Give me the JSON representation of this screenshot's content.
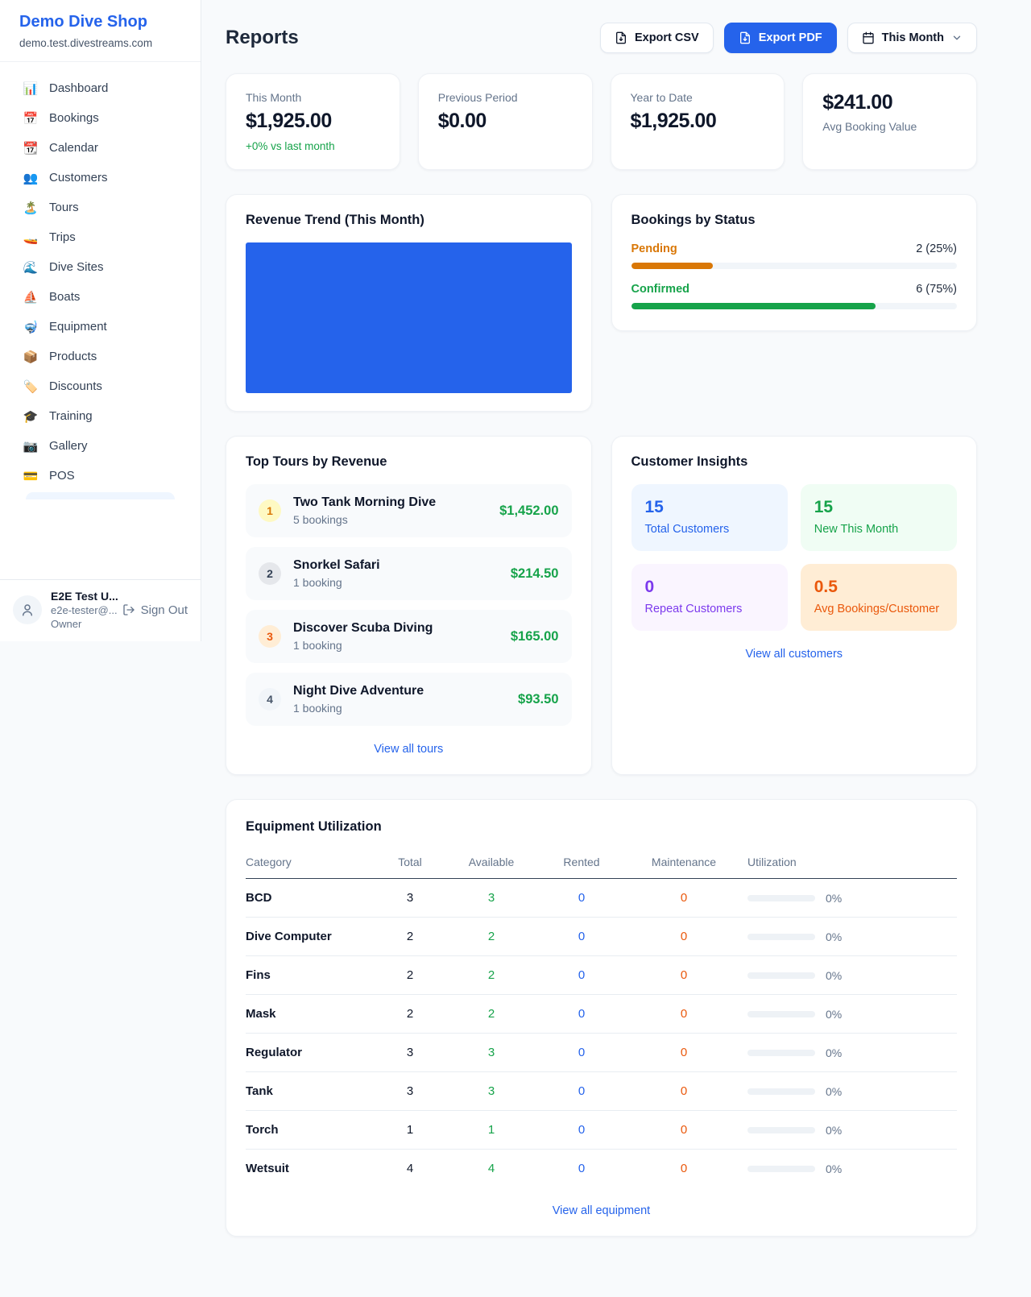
{
  "colors": {
    "accent_blue": "#2563eb",
    "green": "#16a34a",
    "orange_pending": "#d97706",
    "orange_maintenance": "#ea580c",
    "purple": "#7c3aed",
    "page_bg": "#f8fafc"
  },
  "sidebar": {
    "brand": {
      "name": "Demo Dive Shop",
      "domain": "demo.test.divestreams.com"
    },
    "items": [
      {
        "icon": "📊",
        "label": "Dashboard"
      },
      {
        "icon": "📅",
        "label": "Bookings"
      },
      {
        "icon": "📆",
        "label": "Calendar"
      },
      {
        "icon": "👥",
        "label": "Customers"
      },
      {
        "icon": "🏝️",
        "label": "Tours"
      },
      {
        "icon": "🚤",
        "label": "Trips"
      },
      {
        "icon": "🌊",
        "label": "Dive Sites"
      },
      {
        "icon": "⛵",
        "label": "Boats"
      },
      {
        "icon": "🤿",
        "label": "Equipment"
      },
      {
        "icon": "📦",
        "label": "Products"
      },
      {
        "icon": "🏷️",
        "label": "Discounts"
      },
      {
        "icon": "🎓",
        "label": "Training"
      },
      {
        "icon": "📷",
        "label": "Gallery"
      },
      {
        "icon": "💳",
        "label": "POS"
      }
    ],
    "user": {
      "name": "E2E Test U...",
      "email": "e2e-tester@...",
      "role": "Owner",
      "signout_label": "Sign Out"
    }
  },
  "header": {
    "title": "Reports",
    "export_csv_label": "Export CSV",
    "export_pdf_label": "Export PDF",
    "period_label": "This Month"
  },
  "stats": [
    {
      "label": "This Month",
      "value": "$1,925.00",
      "delta": "+0% vs last month"
    },
    {
      "label": "Previous Period",
      "value": "$0.00"
    },
    {
      "label": "Year to Date",
      "value": "$1,925.00"
    },
    {
      "value": "$241.00",
      "label": "Avg Booking Value"
    }
  ],
  "revenue_trend": {
    "title": "Revenue Trend (This Month)"
  },
  "bookings_by_status": {
    "title": "Bookings by Status",
    "rows": [
      {
        "label": "Pending",
        "value": "2 (25%)",
        "pct": 25,
        "color": "#d97706"
      },
      {
        "label": "Confirmed",
        "value": "6 (75%)",
        "pct": 75,
        "color": "#16a34a"
      }
    ]
  },
  "top_tours": {
    "title": "Top Tours by Revenue",
    "rows": [
      {
        "rank": "1",
        "name": "Two Tank Morning Dive",
        "bookings": "5 bookings",
        "amount": "$1,452.00"
      },
      {
        "rank": "2",
        "name": "Snorkel Safari",
        "bookings": "1 booking",
        "amount": "$214.50"
      },
      {
        "rank": "3",
        "name": "Discover Scuba Diving",
        "bookings": "1 booking",
        "amount": "$165.00"
      },
      {
        "rank": "4",
        "name": "Night Dive Adventure",
        "bookings": "1 booking",
        "amount": "$93.50"
      }
    ],
    "view_all": "View all tours"
  },
  "customer_insights": {
    "title": "Customer Insights",
    "tiles": [
      {
        "value": "15",
        "label": "Total Customers"
      },
      {
        "value": "15",
        "label": "New This Month"
      },
      {
        "value": "0",
        "label": "Repeat Customers"
      },
      {
        "value": "0.5",
        "label": "Avg Bookings/Customer"
      }
    ],
    "view_all": "View all customers"
  },
  "equipment": {
    "title": "Equipment Utilization",
    "columns": [
      "Category",
      "Total",
      "Available",
      "Rented",
      "Maintenance",
      "Utilization"
    ],
    "rows": [
      {
        "category": "BCD",
        "total": "3",
        "available": "3",
        "rented": "0",
        "maintenance": "0",
        "pct": 0,
        "utilization": "0%"
      },
      {
        "category": "Dive Computer",
        "total": "2",
        "available": "2",
        "rented": "0",
        "maintenance": "0",
        "pct": 0,
        "utilization": "0%"
      },
      {
        "category": "Fins",
        "total": "2",
        "available": "2",
        "rented": "0",
        "maintenance": "0",
        "pct": 0,
        "utilization": "0%"
      },
      {
        "category": "Mask",
        "total": "2",
        "available": "2",
        "rented": "0",
        "maintenance": "0",
        "pct": 0,
        "utilization": "0%"
      },
      {
        "category": "Regulator",
        "total": "3",
        "available": "3",
        "rented": "0",
        "maintenance": "0",
        "pct": 0,
        "utilization": "0%"
      },
      {
        "category": "Tank",
        "total": "3",
        "available": "3",
        "rented": "0",
        "maintenance": "0",
        "pct": 0,
        "utilization": "0%"
      },
      {
        "category": "Torch",
        "total": "1",
        "available": "1",
        "rented": "0",
        "maintenance": "0",
        "pct": 0,
        "utilization": "0%"
      },
      {
        "category": "Wetsuit",
        "total": "4",
        "available": "4",
        "rented": "0",
        "maintenance": "0",
        "pct": 0,
        "utilization": "0%"
      }
    ],
    "view_all": "View all equipment"
  }
}
